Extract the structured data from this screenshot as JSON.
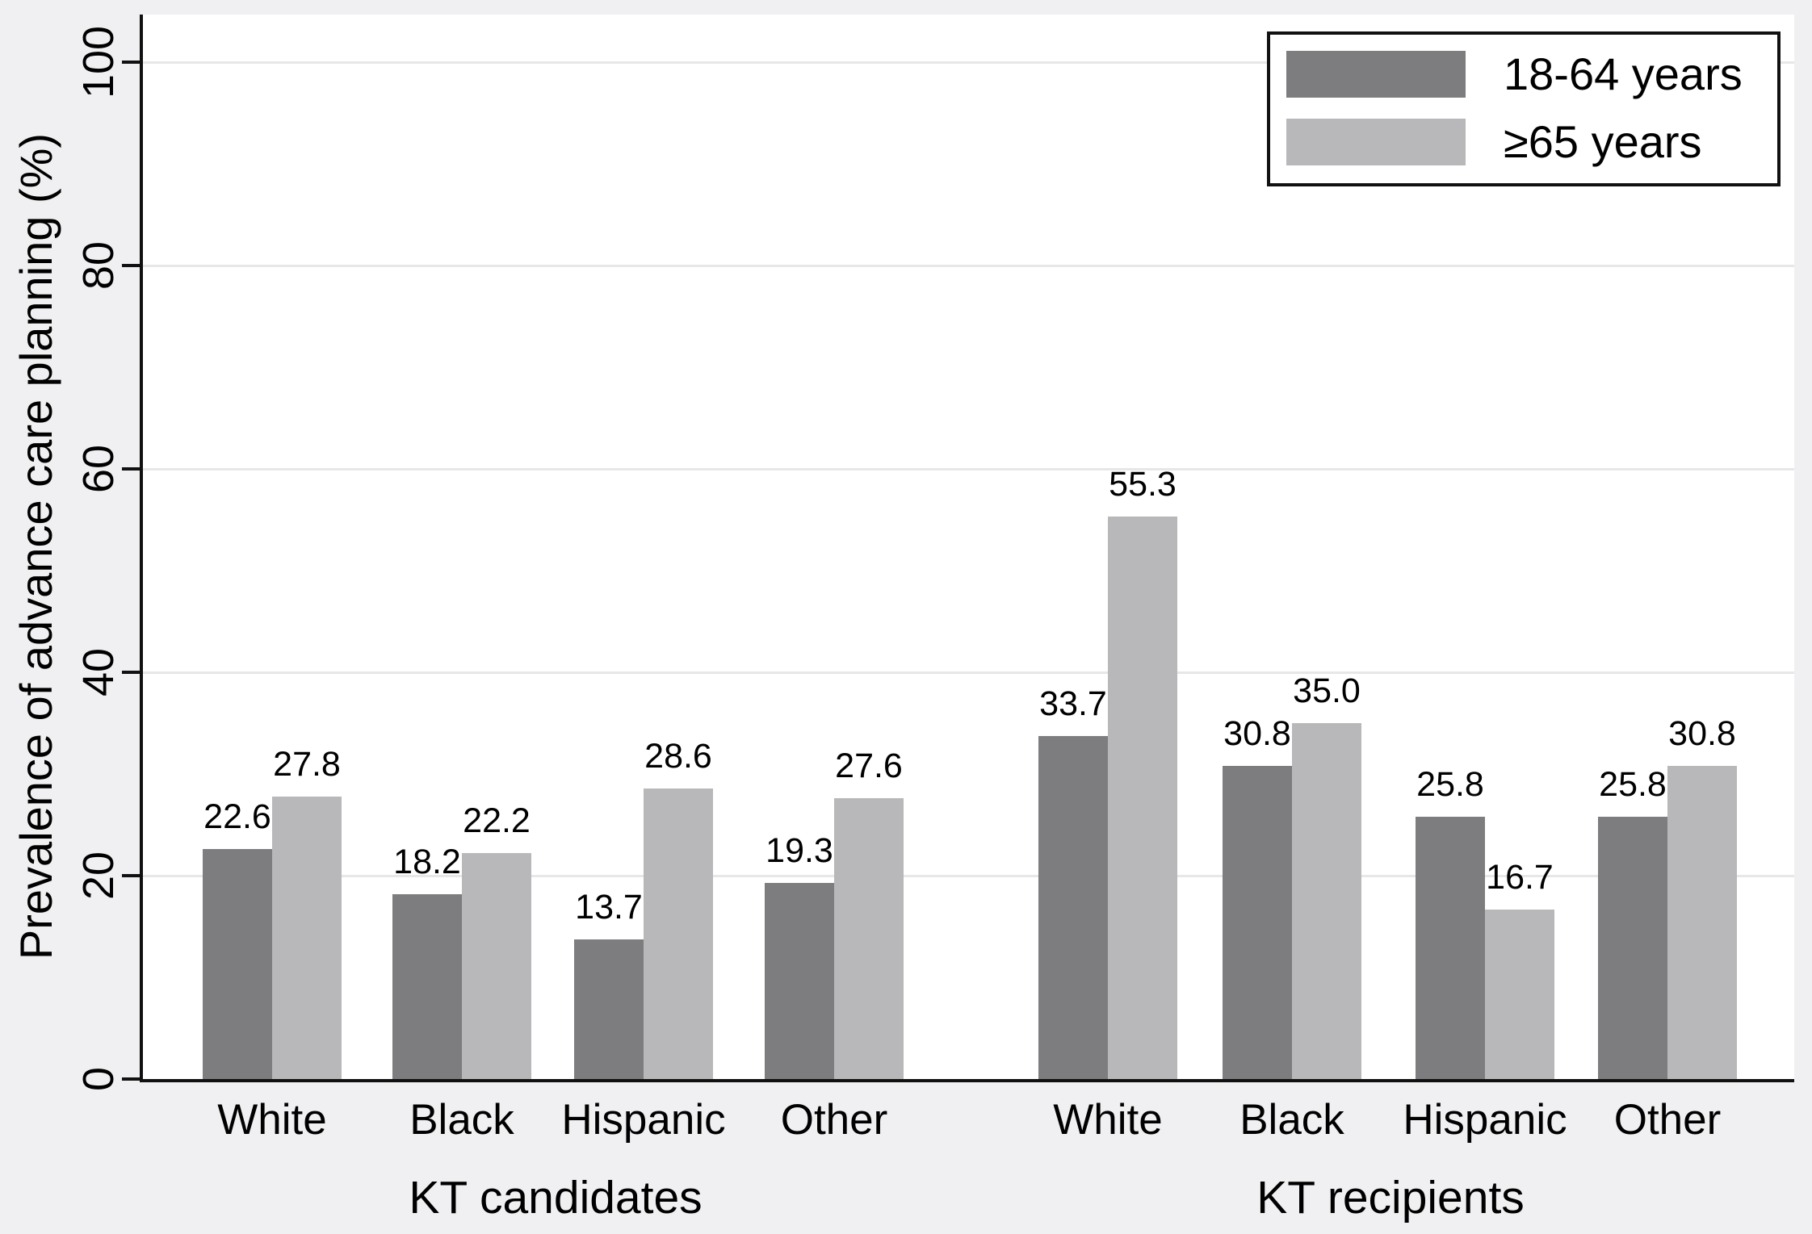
{
  "chart_data": {
    "type": "bar",
    "title": "",
    "xlabel": "",
    "ylabel": "Prevalence of advance care planning (%)",
    "ylim": [
      0,
      100
    ],
    "yticks": [
      0,
      20,
      40,
      60,
      80,
      100
    ],
    "grid": true,
    "legend_position": "top-right",
    "groups": [
      {
        "label": "KT candidates",
        "categories": [
          "White",
          "Black",
          "Hispanic",
          "Other"
        ]
      },
      {
        "label": "KT recipients",
        "categories": [
          "White",
          "Black",
          "Hispanic",
          "Other"
        ]
      }
    ],
    "series": [
      {
        "name": "18-64 years",
        "color": "#7d7d80",
        "values": [
          [
            22.6,
            18.2,
            13.7,
            19.3
          ],
          [
            33.7,
            30.8,
            25.8,
            25.8
          ]
        ]
      },
      {
        "name": "≥65 years",
        "color": "#b8b8ba",
        "values": [
          [
            27.8,
            22.2,
            28.6,
            27.6
          ],
          [
            55.3,
            35.0,
            16.7,
            30.8
          ]
        ]
      }
    ]
  },
  "colors": {
    "page_background": "#f0f0f2",
    "plot_background": "#ffffff",
    "gridline": "#e7e7e9",
    "axis": "#111111",
    "text": "#000000"
  }
}
